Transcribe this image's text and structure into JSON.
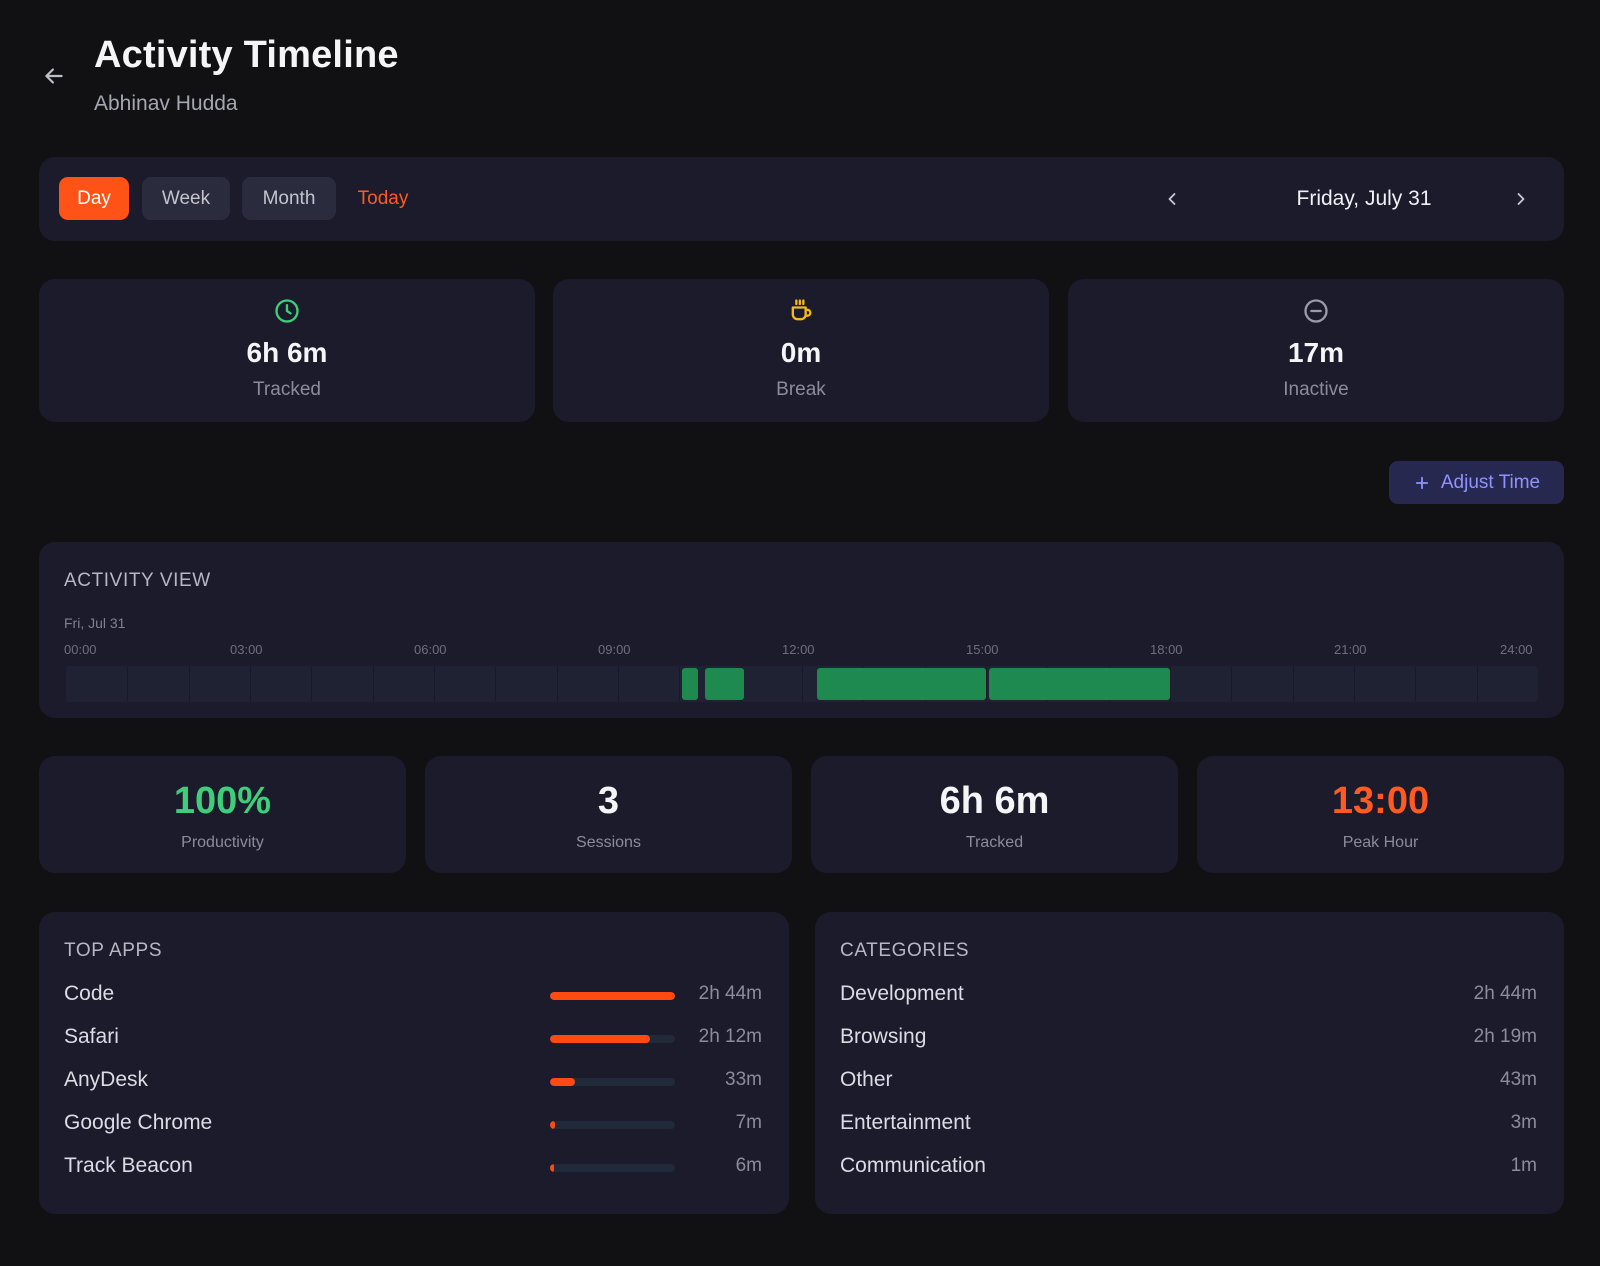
{
  "header": {
    "title": "Activity Timeline",
    "subtitle": "Abhinav Hudda"
  },
  "toolbar": {
    "views": [
      {
        "label": "Day",
        "active": true
      },
      {
        "label": "Week",
        "active": false
      },
      {
        "label": "Month",
        "active": false
      }
    ],
    "today_label": "Today",
    "date_label": "Friday, July 31"
  },
  "summary": [
    {
      "icon": "clock-icon",
      "value": "6h 6m",
      "label": "Tracked",
      "color": "#3ecf7a"
    },
    {
      "icon": "coffee-icon",
      "value": "0m",
      "label": "Break",
      "color": "#f5b81a"
    },
    {
      "icon": "minus-circle-icon",
      "value": "17m",
      "label": "Inactive",
      "color": "#9a9aa8"
    }
  ],
  "adjust_label": "Adjust Time",
  "activity": {
    "title": "ACTIVITY VIEW",
    "date": "Fri, Jul 31",
    "ticks": [
      "00:00",
      "03:00",
      "06:00",
      "09:00",
      "12:00",
      "15:00",
      "18:00",
      "21:00",
      "24:00"
    ],
    "blocks": [
      {
        "start": 10.05,
        "end": 10.3
      },
      {
        "start": 10.42,
        "end": 11.05
      },
      {
        "start": 12.25,
        "end": 15.0
      },
      {
        "start": 15.05,
        "end": 18.0
      }
    ]
  },
  "stats": [
    {
      "value": "100%",
      "label": "Productivity",
      "color": "#3ecf7a"
    },
    {
      "value": "3",
      "label": "Sessions",
      "color": "#f5f5f7"
    },
    {
      "value": "6h 6m",
      "label": "Tracked",
      "color": "#f5f5f7"
    },
    {
      "value": "13:00",
      "label": "Peak Hour",
      "color": "#ff5a22"
    }
  ],
  "top_apps": {
    "title": "TOP APPS",
    "items": [
      {
        "name": "Code",
        "duration": "2h 44m",
        "fraction": 1.0
      },
      {
        "name": "Safari",
        "duration": "2h 12m",
        "fraction": 0.8
      },
      {
        "name": "AnyDesk",
        "duration": "33m",
        "fraction": 0.2
      },
      {
        "name": "Google Chrome",
        "duration": "7m",
        "fraction": 0.04
      },
      {
        "name": "Track Beacon",
        "duration": "6m",
        "fraction": 0.035
      }
    ]
  },
  "categories": {
    "title": "CATEGORIES",
    "items": [
      {
        "name": "Development",
        "duration": "2h 44m"
      },
      {
        "name": "Browsing",
        "duration": "2h 19m"
      },
      {
        "name": "Other",
        "duration": "43m"
      },
      {
        "name": "Entertainment",
        "duration": "3m"
      },
      {
        "name": "Communication",
        "duration": "1m"
      }
    ]
  }
}
